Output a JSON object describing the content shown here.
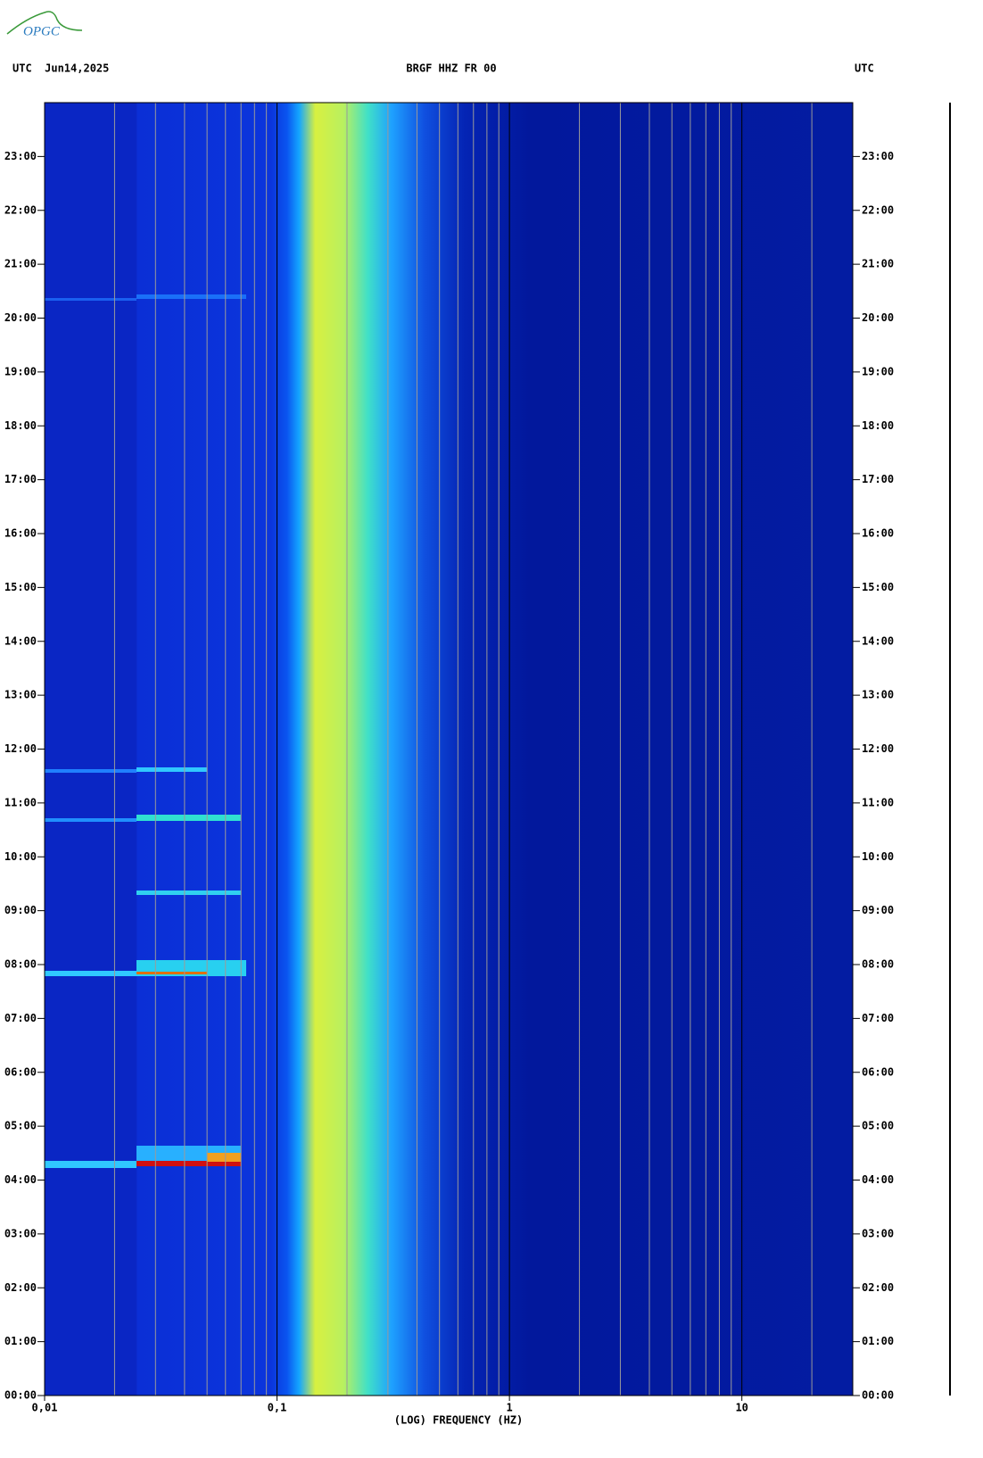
{
  "header": {
    "logo": "OPGC",
    "left": "UTC  Jun14,2025",
    "center": "BRGF HHZ FR 00",
    "right": "UTC"
  },
  "chart_data": {
    "type": "spectrogram",
    "x_label": "(LOG) FREQUENCY (HZ)",
    "log_x": true,
    "xlim": [
      0.01,
      30
    ],
    "xticks": [
      {
        "value": 0.01,
        "label": "0,01"
      },
      {
        "value": 0.1,
        "label": "0,1"
      },
      1,
      10
    ],
    "x_minor_grid": [
      0.02,
      0.03,
      0.04,
      0.05,
      0.06,
      0.07,
      0.08,
      0.09,
      0.2,
      0.3,
      0.4,
      0.5,
      0.6,
      0.7,
      0.8,
      0.9,
      2,
      3,
      4,
      5,
      6,
      7,
      8,
      9,
      20
    ],
    "ylim": [
      0,
      24
    ],
    "yticks": [
      {
        "value": 0,
        "label": "00:00"
      },
      {
        "value": 1,
        "label": "01:00"
      },
      {
        "value": 2,
        "label": "02:00"
      },
      {
        "value": 3,
        "label": "03:00"
      },
      {
        "value": 4,
        "label": "04:00"
      },
      {
        "value": 5,
        "label": "05:00"
      },
      {
        "value": 6,
        "label": "06:00"
      },
      {
        "value": 7,
        "label": "07:00"
      },
      {
        "value": 8,
        "label": "08:00"
      },
      {
        "value": 9,
        "label": "09:00"
      },
      {
        "value": 10,
        "label": "10:00"
      },
      {
        "value": 11,
        "label": "11:00"
      },
      {
        "value": 12,
        "label": "12:00"
      },
      {
        "value": 13,
        "label": "13:00"
      },
      {
        "value": 14,
        "label": "14:00"
      },
      {
        "value": 15,
        "label": "15:00"
      },
      {
        "value": 16,
        "label": "16:00"
      },
      {
        "value": 17,
        "label": "17:00"
      },
      {
        "value": 18,
        "label": "18:00"
      },
      {
        "value": 19,
        "label": "19:00"
      },
      {
        "value": 20,
        "label": "20:00"
      },
      {
        "value": 21,
        "label": "21:00"
      },
      {
        "value": 22,
        "label": "22:00"
      },
      {
        "value": 23,
        "label": "23:00"
      }
    ]
  }
}
